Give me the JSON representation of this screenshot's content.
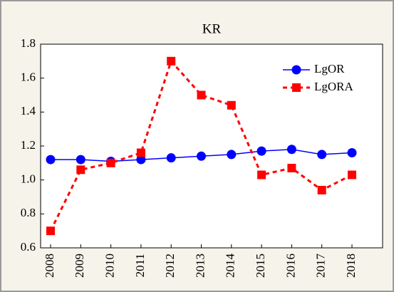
{
  "chart_data": {
    "type": "line",
    "title": "KR",
    "categories": [
      "2008",
      "2009",
      "2010",
      "2011",
      "2012",
      "2013",
      "2014",
      "2015",
      "2016",
      "2017",
      "2018"
    ],
    "series": [
      {
        "name": "LgOR",
        "color": "#0000ff",
        "marker": "circle",
        "line_style": "solid",
        "values": [
          1.12,
          1.12,
          1.11,
          1.12,
          1.13,
          1.14,
          1.15,
          1.17,
          1.18,
          1.15,
          1.16
        ]
      },
      {
        "name": "LgORA",
        "color": "#ff0000",
        "marker": "square",
        "line_style": "dashed",
        "values": [
          0.7,
          1.06,
          1.1,
          1.16,
          1.7,
          1.5,
          1.44,
          1.03,
          1.07,
          0.94,
          1.03
        ]
      }
    ],
    "ylim": [
      0.6,
      1.8
    ],
    "yticks": [
      0.6,
      0.8,
      {
        "value": 1,
        "label": "1.0"
      },
      1.2,
      1.4,
      1.6,
      1.8
    ],
    "grid": false,
    "legend": "upper right"
  }
}
